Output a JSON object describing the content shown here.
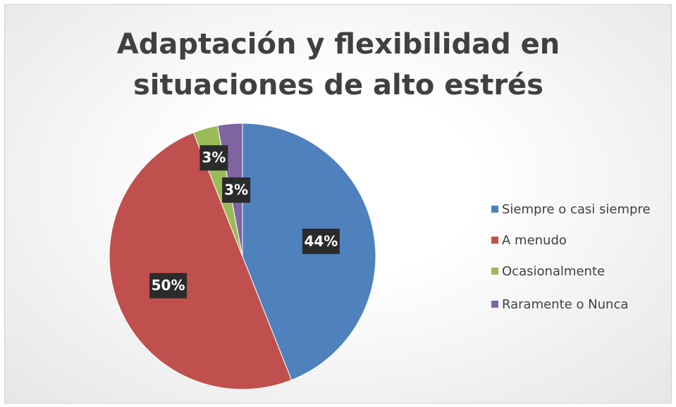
{
  "chart_data": {
    "type": "pie",
    "title": "Adaptación y flexibilidad en situaciones de alto estrés",
    "categories": [
      "Siempre o casi siempre",
      "A menudo",
      "Ocasionalmente",
      "Raramente o Nunca"
    ],
    "values": [
      44,
      50,
      3,
      3
    ],
    "value_labels": [
      "44%",
      "50%",
      "3%",
      "3%"
    ],
    "colors": [
      "#4f81bd",
      "#c0504d",
      "#9bbb59",
      "#8064a2"
    ],
    "legend": "right"
  }
}
